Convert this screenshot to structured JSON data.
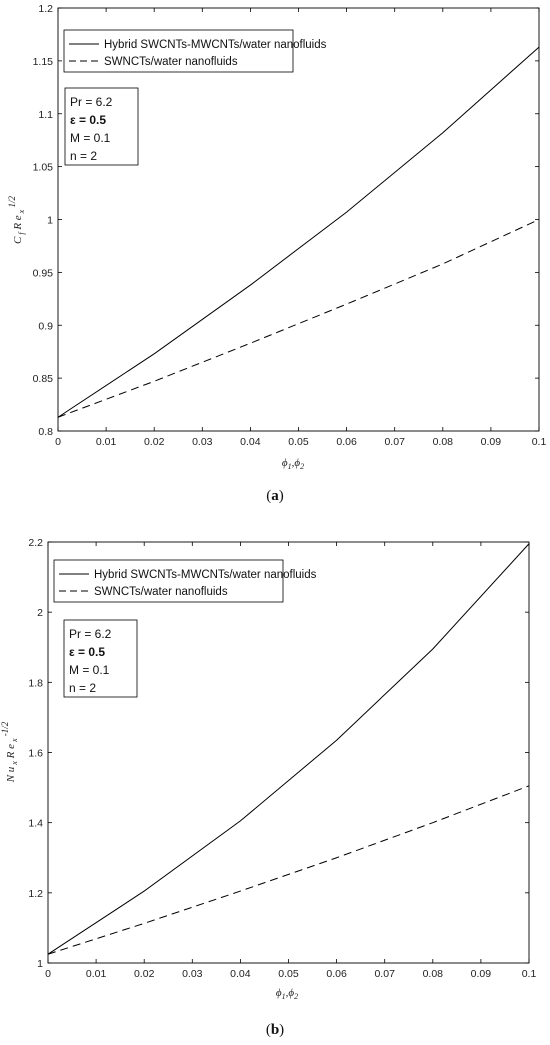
{
  "chart_data": [
    {
      "type": "line",
      "panel_label": "a",
      "xlabel": "φ1,φ2",
      "ylabel": "C_f Re_x^(1/2)",
      "xlim": [
        0,
        0.1
      ],
      "ylim": [
        0.8,
        1.2
      ],
      "xticks": [
        "0",
        "0.01",
        "0.02",
        "0.03",
        "0.04",
        "0.05",
        "0.06",
        "0.07",
        "0.08",
        "0.09",
        "0.1"
      ],
      "yticks": [
        "0.8",
        "0.85",
        "0.9",
        "0.95",
        "1",
        "1.05",
        "1.1",
        "1.15",
        "1.2"
      ],
      "grid": false,
      "legend_position": "top-left",
      "x": [
        0,
        0.02,
        0.04,
        0.06,
        0.08,
        0.1
      ],
      "series": [
        {
          "name": "Hybrid SWCNTs-MWCNTs/water nanofluids",
          "style": "solid",
          "values": [
            0.813,
            0.873,
            0.938,
            1.007,
            1.082,
            1.163
          ]
        },
        {
          "name": "SWNCTs/water nanofluids",
          "style": "dashed",
          "values": [
            0.813,
            0.847,
            0.883,
            0.92,
            0.958,
            1.0
          ]
        }
      ],
      "annotation": [
        "Pr = 6.2",
        "ε = 0.5",
        "M = 0.1",
        "n = 2"
      ]
    },
    {
      "type": "line",
      "panel_label": "b",
      "xlabel": "φ1,φ2",
      "ylabel": "Nu_x Re_x^(-1/2)",
      "xlim": [
        0,
        0.1
      ],
      "ylim": [
        1,
        2.2
      ],
      "xticks": [
        "0",
        "0.01",
        "0.02",
        "0.03",
        "0.04",
        "0.05",
        "0.06",
        "0.07",
        "0.08",
        "0.09",
        "0.1"
      ],
      "yticks": [
        "1",
        "1.2",
        "1.4",
        "1.6",
        "1.8",
        "2",
        "2.2"
      ],
      "grid": false,
      "legend_position": "top-left",
      "x": [
        0,
        0.02,
        0.04,
        0.06,
        0.08,
        0.1
      ],
      "series": [
        {
          "name": "Hybrid SWCNTs-MWCNTs/water nanofluids",
          "style": "solid",
          "values": [
            1.025,
            1.205,
            1.405,
            1.635,
            1.895,
            2.195
          ]
        },
        {
          "name": "SWNCTs/water nanofluids",
          "style": "dashed",
          "values": [
            1.025,
            1.113,
            1.205,
            1.3,
            1.4,
            1.505
          ]
        }
      ],
      "annotation": [
        "Pr = 6.2",
        "ε = 0.5",
        "M = 0.1",
        "n = 2"
      ]
    }
  ],
  "captions": {
    "a": "(a)",
    "b": "(b)"
  }
}
